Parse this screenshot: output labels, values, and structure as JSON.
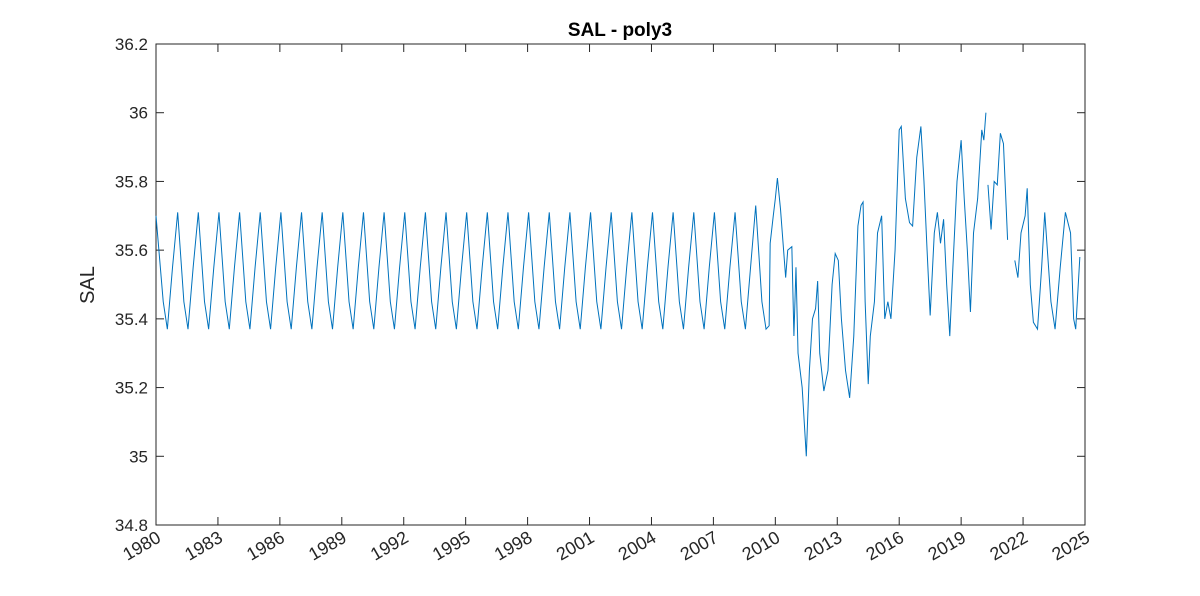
{
  "chart_data": {
    "type": "line",
    "title": "SAL - poly3",
    "y_label": "SAL",
    "xlim": [
      1980,
      2025
    ],
    "xticks": [
      1980,
      1983,
      1986,
      1989,
      1992,
      1995,
      1998,
      2001,
      2004,
      2007,
      2010,
      2013,
      2016,
      2019,
      2022,
      2025
    ],
    "ylim": [
      34.8,
      36.2
    ],
    "yticks": [
      34.8,
      35,
      35.2,
      35.4,
      35.6,
      35.8,
      36,
      36.2
    ],
    "x": [
      1980.0,
      1980.35,
      1980.55,
      1980.8,
      1981.05,
      1981.35,
      1981.55,
      1981.8,
      1982.05,
      1982.35,
      1982.55,
      1982.8,
      1983.05,
      1983.35,
      1983.55,
      1983.8,
      1984.05,
      1984.35,
      1984.55,
      1984.8,
      1985.05,
      1985.35,
      1985.55,
      1985.8,
      1986.05,
      1986.35,
      1986.55,
      1986.8,
      1987.05,
      1987.35,
      1987.55,
      1987.8,
      1988.05,
      1988.35,
      1988.55,
      1988.8,
      1989.05,
      1989.35,
      1989.55,
      1989.8,
      1990.05,
      1990.35,
      1990.55,
      1990.8,
      1991.05,
      1991.35,
      1991.55,
      1991.8,
      1992.05,
      1992.35,
      1992.55,
      1992.8,
      1993.05,
      1993.35,
      1993.55,
      1993.8,
      1994.05,
      1994.35,
      1994.55,
      1994.8,
      1995.05,
      1995.35,
      1995.55,
      1995.8,
      1996.05,
      1996.35,
      1996.55,
      1996.8,
      1997.05,
      1997.35,
      1997.55,
      1997.8,
      1998.05,
      1998.35,
      1998.55,
      1998.8,
      1999.05,
      1999.35,
      1999.55,
      1999.8,
      2000.05,
      2000.35,
      2000.55,
      2000.8,
      2001.05,
      2001.35,
      2001.55,
      2001.8,
      2002.05,
      2002.35,
      2002.55,
      2002.8,
      2003.05,
      2003.35,
      2003.55,
      2003.8,
      2004.05,
      2004.35,
      2004.55,
      2004.8,
      2005.05,
      2005.35,
      2005.55,
      2005.8,
      2006.05,
      2006.35,
      2006.55,
      2006.8,
      2007.05,
      2007.35,
      2007.55,
      2007.8,
      2008.05,
      2008.35,
      2008.55,
      2008.8,
      2009.05,
      2009.35,
      2009.55,
      2009.7,
      2009.75,
      2009.9,
      2010.0,
      2010.1,
      2010.25,
      2010.4,
      2010.5,
      2010.6,
      2010.8,
      2010.9,
      2011.0,
      2011.1,
      2011.3,
      2011.5,
      2011.65,
      2011.8,
      2011.95,
      2012.05,
      2012.15,
      2012.35,
      2012.55,
      2012.75,
      2012.9,
      2013.05,
      2013.2,
      2013.4,
      2013.6,
      2013.8,
      2014.0,
      2014.15,
      2014.25,
      2014.35,
      2014.5,
      2014.6,
      2014.8,
      2014.95,
      2015.15,
      2015.3,
      2015.45,
      2015.6,
      2015.8,
      2016.0,
      2016.1,
      2016.3,
      2016.5,
      2016.65,
      2016.85,
      2017.05,
      2017.2,
      2017.35,
      2017.5,
      2017.7,
      2017.85,
      2018.0,
      2018.15,
      2018.3,
      2018.45,
      2018.6,
      2018.8,
      2019.0,
      2019.15,
      2019.3,
      2019.45,
      2019.6,
      2019.8,
      2020.0,
      2020.1,
      2020.2,
      2020.25,
      2020.3,
      2020.45,
      2020.6,
      2020.75,
      2020.9,
      2021.05,
      2021.25,
      2021.4,
      2021.6,
      2021.75,
      2021.9,
      2022.1,
      2022.2,
      2022.35,
      2022.5,
      2022.7,
      2022.9,
      2023.05,
      2023.35,
      2023.55,
      2023.8,
      2024.05,
      2024.3,
      2024.45,
      2024.55,
      2024.75
    ],
    "series": [
      {
        "name": "SAL",
        "color": "#0072bd",
        "values": [
          35.7,
          35.45,
          35.37,
          35.55,
          35.71,
          35.45,
          35.37,
          35.55,
          35.71,
          35.45,
          35.37,
          35.55,
          35.71,
          35.45,
          35.37,
          35.55,
          35.71,
          35.45,
          35.37,
          35.55,
          35.71,
          35.45,
          35.37,
          35.55,
          35.71,
          35.45,
          35.37,
          35.55,
          35.71,
          35.45,
          35.37,
          35.55,
          35.71,
          35.45,
          35.37,
          35.55,
          35.71,
          35.45,
          35.37,
          35.55,
          35.71,
          35.45,
          35.37,
          35.55,
          35.71,
          35.45,
          35.37,
          35.55,
          35.71,
          35.45,
          35.37,
          35.55,
          35.71,
          35.45,
          35.37,
          35.55,
          35.71,
          35.45,
          35.37,
          35.55,
          35.71,
          35.45,
          35.37,
          35.55,
          35.71,
          35.45,
          35.37,
          35.55,
          35.71,
          35.45,
          35.37,
          35.55,
          35.71,
          35.45,
          35.37,
          35.55,
          35.71,
          35.45,
          35.37,
          35.55,
          35.71,
          35.45,
          35.37,
          35.55,
          35.71,
          35.45,
          35.37,
          35.55,
          35.71,
          35.45,
          35.37,
          35.55,
          35.71,
          35.45,
          35.37,
          35.55,
          35.71,
          35.45,
          35.37,
          35.55,
          35.71,
          35.45,
          35.37,
          35.55,
          35.71,
          35.45,
          35.37,
          35.55,
          35.71,
          35.45,
          35.37,
          35.55,
          35.71,
          35.45,
          35.37,
          35.55,
          35.73,
          35.45,
          35.37,
          35.38,
          35.62,
          35.7,
          35.75,
          35.81,
          35.72,
          35.6,
          35.52,
          35.6,
          35.61,
          35.35,
          35.55,
          35.3,
          35.2,
          35.0,
          35.25,
          35.4,
          35.43,
          35.51,
          35.3,
          35.19,
          35.25,
          35.5,
          35.59,
          35.57,
          35.4,
          35.25,
          35.17,
          35.35,
          35.67,
          35.73,
          35.74,
          35.45,
          35.21,
          35.35,
          35.45,
          35.65,
          35.7,
          35.4,
          35.45,
          35.4,
          35.6,
          35.95,
          35.96,
          35.75,
          35.68,
          35.67,
          35.87,
          35.96,
          35.8,
          35.6,
          35.41,
          35.65,
          35.71,
          35.62,
          35.69,
          35.5,
          35.35,
          35.55,
          35.8,
          35.92,
          35.75,
          35.6,
          35.42,
          35.65,
          35.75,
          35.95,
          35.92,
          36.0,
          null,
          35.79,
          35.66,
          35.8,
          35.79,
          35.94,
          35.91,
          35.63,
          null,
          35.57,
          35.52,
          35.65,
          35.7,
          35.78,
          35.5,
          35.39,
          35.37,
          35.55,
          35.71,
          35.45,
          35.37,
          35.55,
          35.71,
          35.65,
          35.4,
          35.37,
          35.58
        ]
      }
    ]
  }
}
